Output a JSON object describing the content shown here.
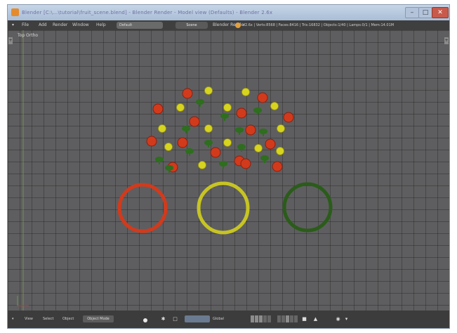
{
  "window": {
    "title": "Blender [C:\\...\\tutorial\\fruit_scene.blend] - Blender Render - Model view (Defaults) - Blender 2.6x",
    "minimize_label": "–",
    "maximize_label": "□",
    "close_label": "✕"
  },
  "menubar": {
    "items": [
      "File",
      "Add",
      "Render",
      "Window",
      "Help"
    ],
    "layout": "Default",
    "scene": "Scene",
    "render_engine": "Blender Render",
    "stats": "v2.6x | Verts:8568 | Faces:8416 | Tris:16832 | Objects:1/40 | Lamps:0/1 | Mem:14.01M"
  },
  "viewport": {
    "view_label": "Top Ortho",
    "toolshelf_toggle": "+",
    "properties_toggle": "+",
    "grid_color": "#5e5e60",
    "fruit_colors": {
      "red": "#d23a1c",
      "yellow": "#d6d41e",
      "green": "#2e6e1e"
    },
    "rings": [
      {
        "color": "#d23a1c",
        "name": "red-ring"
      },
      {
        "color": "#c7c423",
        "name": "yellow-ring"
      },
      {
        "color": "#2b5c1a",
        "name": "green-ring"
      }
    ]
  },
  "header": {
    "view_menu": "View",
    "select_menu": "Select",
    "object_menu": "Object",
    "mode": "Object Mode",
    "pivot": "Global",
    "layers_on": [
      0,
      1,
      2,
      10
    ],
    "icons": [
      "view-icon",
      "pivot-icon",
      "manipulator-icon",
      "layers-icon",
      "lock-icon",
      "render-icon"
    ]
  }
}
